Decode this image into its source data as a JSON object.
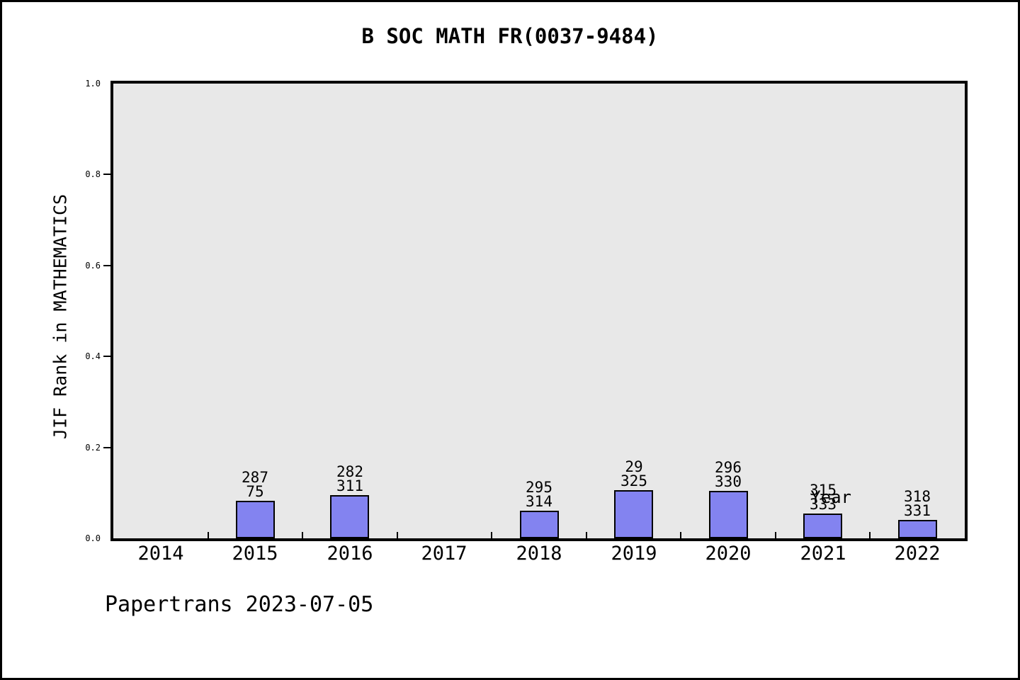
{
  "frame": {
    "background": "#ffffff",
    "border_color": "#000000"
  },
  "footer": "Papertrans 2023-07-05",
  "chart_data": {
    "type": "bar",
    "title": "B SOC MATH FR(0037-9484)",
    "xlabel": "Year",
    "ylabel": "JIF Rank in MATHEMATICS",
    "categories": [
      "2014",
      "2015",
      "2016",
      "2017",
      "2018",
      "2019",
      "2020",
      "2021",
      "2022"
    ],
    "values": [
      0,
      0.083,
      0.095,
      0,
      0.061,
      0.106,
      0.104,
      0.055,
      0.04
    ],
    "bar_labels": [
      [],
      [
        "287",
        "75"
      ],
      [
        "282",
        "311"
      ],
      [],
      [
        "295",
        "314"
      ],
      [
        "29",
        "325"
      ],
      [
        "296",
        "330"
      ],
      [
        "315",
        "333"
      ],
      [
        "318",
        "331"
      ]
    ],
    "yticks": [
      {
        "label": "0.0",
        "value": 0.0
      },
      {
        "label": "0.2",
        "value": 0.2
      },
      {
        "label": "0.4",
        "value": 0.4
      },
      {
        "label": "0.6",
        "value": 0.6
      },
      {
        "label": "0.8",
        "value": 0.8
      },
      {
        "label": "1.0",
        "value": 1.0
      }
    ],
    "ylim": [
      0,
      1
    ],
    "grid": false,
    "legend": null,
    "bar_color": "#8383f0",
    "bar_border_color": "#000000",
    "plot_background": "#e8e8e8"
  }
}
